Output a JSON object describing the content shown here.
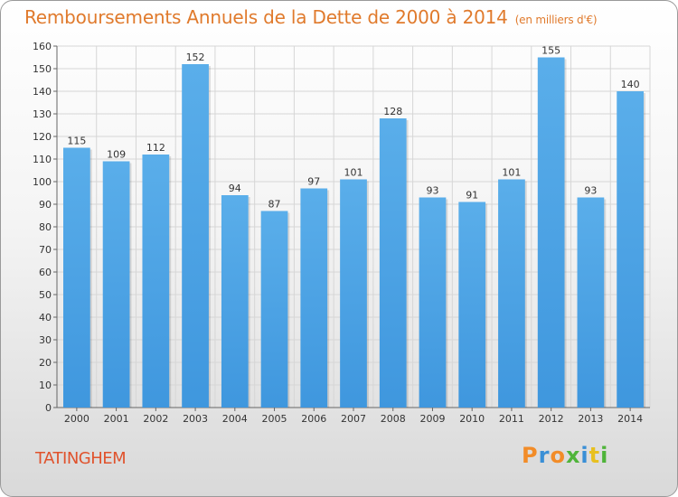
{
  "chart_data": {
    "type": "bar",
    "title": "Remboursements Annuels de la Dette de 2000 à 2014",
    "subtitle": "(en milliers d'€)",
    "categories": [
      "2000",
      "2001",
      "2002",
      "2003",
      "2004",
      "2005",
      "2006",
      "2007",
      "2008",
      "2009",
      "2010",
      "2011",
      "2012",
      "2013",
      "2014"
    ],
    "values": [
      115,
      109,
      112,
      152,
      94,
      87,
      97,
      101,
      128,
      93,
      91,
      101,
      155,
      93,
      140
    ],
    "ylim": [
      0,
      160
    ],
    "yticks": [
      0,
      10,
      20,
      30,
      40,
      50,
      60,
      70,
      80,
      90,
      100,
      110,
      120,
      130,
      140,
      150,
      160
    ],
    "grid": true,
    "bar_color": "#3f97de",
    "bar_color_top": "#5aaeea"
  },
  "footer": {
    "commune": "TATINGHEM",
    "logo": [
      "P",
      "r",
      "o",
      "x",
      "i",
      "t",
      "i"
    ],
    "logo_colors": [
      "#f28c28",
      "#3a8fd6",
      "#f28c28",
      "#4fb43a",
      "#3a8fd6",
      "#e8c020",
      "#4fb43a"
    ]
  }
}
